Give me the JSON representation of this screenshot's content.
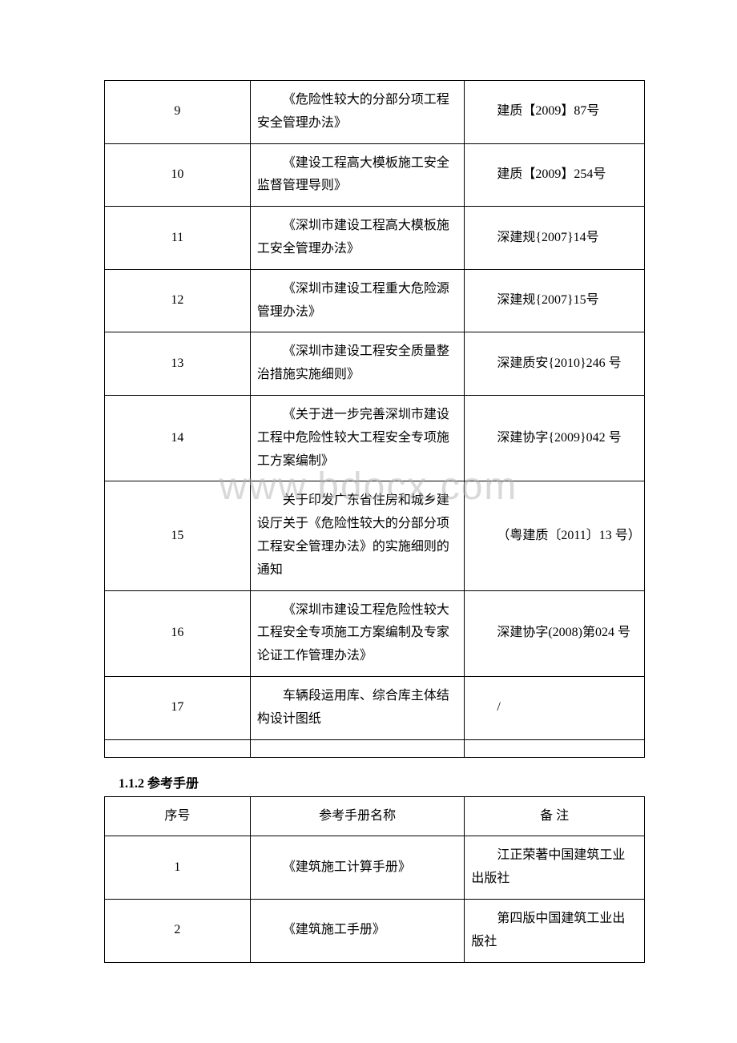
{
  "watermark": "www.bdocx.com",
  "table1": {
    "rows": [
      {
        "num": "9",
        "name": "《危险性较大的分部分项工程安全管理办法》",
        "note": "建质【2009】87号"
      },
      {
        "num": "10",
        "name": "《建设工程高大模板施工安全监督管理导则》",
        "note": "建质【2009】254号"
      },
      {
        "num": "11",
        "name": "《深圳市建设工程高大模板施工安全管理办法》",
        "note": "深建规{2007}14号"
      },
      {
        "num": "12",
        "name": "《深圳市建设工程重大危险源管理办法》",
        "note": "深建规{2007}15号"
      },
      {
        "num": "13",
        "name": "《深圳市建设工程安全质量整治措施实施细则》",
        "note": "深建质安{2010}246 号"
      },
      {
        "num": "14",
        "name": "《关于进一步完善深圳市建设工程中危险性较大工程安全专项施工方案编制》",
        "note": "深建协字{2009}042 号"
      },
      {
        "num": "15",
        "name": "关于印发广东省住房和城乡建设厅关于《危险性较大的分部分项工程安全管理办法》的实施细则的通知",
        "note": "（粤建质〔2011〕13 号）"
      },
      {
        "num": "16",
        "name": "《深圳市建设工程危险性较大工程安全专项施工方案编制及专家论证工作管理办法》",
        "note": "深建协字(2008)第024 号"
      },
      {
        "num": "17",
        "name": "车辆段运用库、综合库主体结构设计图纸",
        "note": "/"
      }
    ]
  },
  "section2": {
    "title": "1.1.2 参考手册",
    "headers": {
      "c1": "序号",
      "c2": "参考手册名称",
      "c3": "备 注"
    },
    "rows": [
      {
        "num": "1",
        "name": "《建筑施工计算手册》",
        "note": "江正荣著中国建筑工业出版社"
      },
      {
        "num": "2",
        "name": "《建筑施工手册》",
        "note": "第四版中国建筑工业出版社"
      }
    ]
  }
}
